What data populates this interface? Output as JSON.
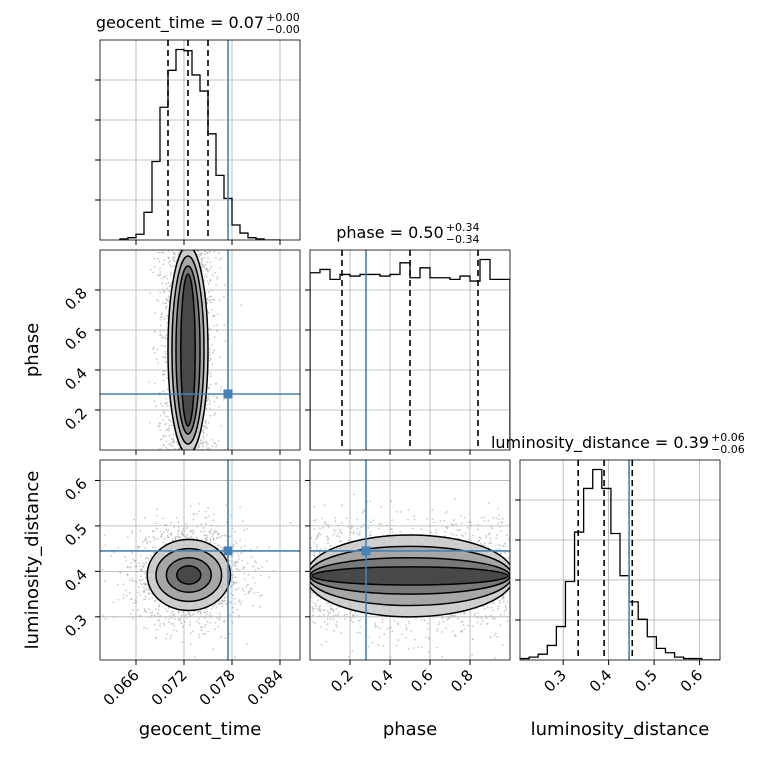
{
  "chart_data": {
    "type": "corner",
    "parameters": [
      "geocent_time",
      "phase",
      "luminosity_distance"
    ],
    "truths": {
      "geocent_time": 0.0775,
      "phase": 0.28,
      "luminosity_distance": 0.445
    },
    "colors": {
      "truth": "#4682b4",
      "hist": "#000000",
      "grid": "#b0b0b0",
      "quantile": "#000000",
      "scatter": "#b4b4b4"
    },
    "titles": [
      {
        "param": "geocent_time",
        "text": "geocent_time = 0.07",
        "sup": "+0.00",
        "sub": "−0.00"
      },
      {
        "param": "phase",
        "text": "phase = 0.50",
        "sup": "+0.34",
        "sub": "−0.34"
      },
      {
        "param": "luminosity_distance",
        "text": "luminosity_distance = 0.39",
        "sup": "+0.06",
        "sub": "−0.06"
      }
    ],
    "axes": {
      "geocent_time": {
        "range": [
          0.0615,
          0.0865
        ],
        "ticks": [
          0.066,
          0.072,
          0.078,
          0.084
        ],
        "tick_labels": [
          "0.066",
          "0.072",
          "0.078",
          "0.084"
        ],
        "label": "geocent_time"
      },
      "phase": {
        "range": [
          0.0,
          1.0
        ],
        "ticks": [
          0.2,
          0.4,
          0.6,
          0.8
        ],
        "tick_labels": [
          "0.2",
          "0.4",
          "0.6",
          "0.8"
        ],
        "label": "phase"
      },
      "luminosity_distance": {
        "range": [
          0.205,
          0.645
        ],
        "ticks": [
          0.3,
          0.4,
          0.5,
          0.6
        ],
        "tick_labels": [
          "0.3",
          "0.4",
          "0.5",
          "0.6"
        ],
        "label": "luminosity_distance"
      }
    },
    "hist1d": {
      "geocent_time": {
        "edges": [
          0.064,
          0.065,
          0.066,
          0.067,
          0.068,
          0.069,
          0.07,
          0.071,
          0.072,
          0.073,
          0.074,
          0.075,
          0.076,
          0.077,
          0.078,
          0.079,
          0.08,
          0.081,
          0.082,
          0.083,
          0.084
        ],
        "counts": [
          1,
          2,
          5,
          24,
          68,
          115,
          147,
          165,
          164,
          143,
          129,
          92,
          56,
          36,
          13,
          6,
          2,
          1,
          0,
          0
        ],
        "quantiles": [
          0.07,
          0.0725,
          0.075
        ]
      },
      "phase": {
        "edges": [
          0.0,
          0.05,
          0.1,
          0.15,
          0.2,
          0.25,
          0.3,
          0.35,
          0.4,
          0.45,
          0.5,
          0.55,
          0.6,
          0.65,
          0.7,
          0.75,
          0.8,
          0.85,
          0.9,
          0.95,
          1.0
        ],
        "counts": [
          107,
          109,
          103,
          106,
          105,
          106,
          106,
          105,
          106,
          113,
          104,
          110,
          104,
          104,
          103,
          105,
          102,
          115,
          103,
          103
        ],
        "quantiles": [
          0.16,
          0.5,
          0.84
        ]
      },
      "luminosity_distance": {
        "edges": [
          0.205,
          0.225,
          0.245,
          0.265,
          0.285,
          0.305,
          0.325,
          0.345,
          0.365,
          0.385,
          0.405,
          0.425,
          0.445,
          0.465,
          0.485,
          0.505,
          0.525,
          0.545,
          0.565,
          0.585,
          0.605,
          0.625,
          0.645
        ],
        "counts": [
          1,
          2,
          4,
          10,
          23,
          54,
          88,
          118,
          131,
          118,
          87,
          58,
          40,
          28,
          16,
          8,
          5,
          2,
          1,
          1,
          0,
          0
        ],
        "quantiles": [
          0.333,
          0.39,
          0.452
        ]
      }
    },
    "contours": {
      "phase|geocent_time": {
        "center": [
          0.0725,
          0.5
        ],
        "levels": [
          [
            0.0025,
            0.52
          ],
          [
            0.002,
            0.47
          ],
          [
            0.0015,
            0.42
          ],
          [
            0.0009,
            0.38
          ]
        ]
      },
      "luminosity_distance|geocent_time": {
        "center": [
          0.0726,
          0.392
        ],
        "levels": [
          [
            0.0052,
            0.078
          ],
          [
            0.0041,
            0.058
          ],
          [
            0.0028,
            0.038
          ],
          [
            0.0015,
            0.02
          ]
        ]
      },
      "luminosity_distance|phase": {
        "center": [
          0.5,
          0.39
        ],
        "levels": [
          [
            0.52,
            0.09
          ],
          [
            0.51,
            0.065
          ],
          [
            0.5,
            0.04
          ],
          [
            0.49,
            0.02
          ]
        ]
      }
    },
    "grid": true,
    "legend": "none"
  }
}
